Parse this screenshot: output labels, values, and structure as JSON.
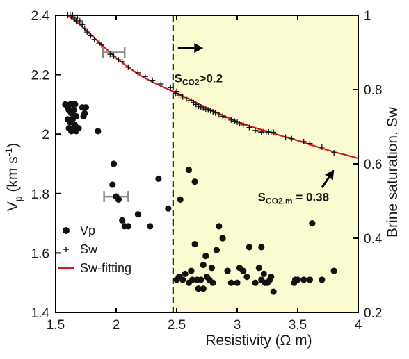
{
  "colors": {
    "shade": "#fbfbd2",
    "fit_line": "#e0141a",
    "marker": "#111111",
    "error_bar": "#8c8c8c"
  },
  "chart_data": {
    "type": "scatter",
    "xlabel": "Resistivity (Ω m)",
    "ylabel_left": {
      "main": "V",
      "sub": "p",
      "rest": " (km s",
      "sup": "-1",
      "end": ")"
    },
    "ylabel_right": "Brine saturation, Sw",
    "xlim": [
      1.5,
      4.0
    ],
    "ylim_left": [
      1.4,
      2.4
    ],
    "ylim_right": [
      0.2,
      1.0
    ],
    "x_ticks": [
      "1.5",
      "2",
      "2.5",
      "3",
      "3.5",
      "4"
    ],
    "y_ticks_left": [
      "1.4",
      "1.6",
      "1.8",
      "2",
      "2.2",
      "2.4"
    ],
    "y_ticks_right": [
      "0.2",
      "0.4",
      "0.6",
      "0.8",
      "1"
    ],
    "threshold_x": 2.47,
    "legend": {
      "placement": "bottom-left",
      "entries": [
        {
          "name": "Vp",
          "symbol": "circle"
        },
        {
          "name": "Sw",
          "symbol": "plus"
        },
        {
          "name": "Sw-fitting",
          "symbol": "line"
        }
      ]
    },
    "annotations": [
      {
        "main": "S",
        "sub": "CO2",
        "rest": ">0.2",
        "x": 2.48,
        "y": 2.175
      },
      {
        "main": "S",
        "sub": "CO2,m",
        "rest": " = 0.38",
        "x": 3.17,
        "y": 1.775
      }
    ],
    "arrows": [
      {
        "from": [
          2.51,
          2.29
        ],
        "to": [
          2.72,
          2.29
        ]
      },
      {
        "from": [
          3.7,
          1.82
        ],
        "to": [
          3.8,
          1.88
        ]
      }
    ],
    "series": [
      {
        "name": "Vp",
        "axis": "left",
        "marker": "circle",
        "points": [
          [
            1.58,
            2.1
          ],
          [
            1.6,
            2.09
          ],
          [
            1.62,
            2.1
          ],
          [
            1.64,
            2.1
          ],
          [
            1.66,
            2.1
          ],
          [
            1.61,
            2.08
          ],
          [
            1.63,
            2.07
          ],
          [
            1.65,
            2.08
          ],
          [
            1.67,
            2.06
          ],
          [
            1.6,
            2.05
          ],
          [
            1.62,
            2.04
          ],
          [
            1.64,
            2.05
          ],
          [
            1.66,
            2.03
          ],
          [
            1.61,
            2.02
          ],
          [
            1.63,
            2.01
          ],
          [
            1.65,
            2.02
          ],
          [
            1.67,
            2.01
          ],
          [
            1.69,
            2.02
          ],
          [
            1.72,
            2.09
          ],
          [
            1.74,
            2.07
          ],
          [
            1.75,
            2.09
          ],
          [
            1.73,
            2.06
          ],
          [
            1.85,
            2.01
          ],
          [
            1.98,
            1.9
          ],
          [
            1.97,
            1.83
          ],
          [
            2.0,
            1.79
          ],
          [
            2.02,
            1.78
          ],
          [
            2.05,
            1.71
          ],
          [
            2.07,
            1.69
          ],
          [
            2.1,
            1.69
          ],
          [
            2.18,
            1.73
          ],
          [
            2.28,
            1.69
          ],
          [
            2.35,
            1.85
          ],
          [
            2.43,
            1.75
          ],
          [
            2.53,
            1.78
          ],
          [
            2.6,
            1.88
          ],
          [
            2.65,
            1.84
          ],
          [
            2.63,
            1.51
          ],
          [
            2.65,
            1.63
          ],
          [
            2.72,
            1.56
          ],
          [
            2.74,
            1.59
          ],
          [
            2.79,
            1.55
          ],
          [
            2.83,
            1.61
          ],
          [
            2.85,
            1.69
          ],
          [
            2.88,
            1.65
          ],
          [
            2.92,
            1.54
          ],
          [
            3.0,
            1.5
          ],
          [
            3.02,
            1.55
          ],
          [
            3.05,
            1.54
          ],
          [
            3.1,
            1.62
          ],
          [
            3.2,
            1.62
          ],
          [
            3.18,
            1.55
          ],
          [
            3.22,
            1.53
          ],
          [
            3.25,
            1.5
          ],
          [
            3.28,
            1.52
          ],
          [
            3.3,
            1.47
          ],
          [
            3.48,
            1.51
          ],
          [
            3.5,
            1.51
          ],
          [
            3.62,
            1.7
          ],
          [
            3.6,
            1.51
          ],
          [
            3.7,
            1.51
          ],
          [
            3.8,
            1.54
          ],
          [
            2.5,
            1.51
          ],
          [
            2.52,
            1.52
          ],
          [
            2.55,
            1.51
          ],
          [
            2.57,
            1.53
          ],
          [
            2.6,
            1.5
          ],
          [
            2.62,
            1.54
          ],
          [
            2.67,
            1.51
          ],
          [
            2.68,
            1.48
          ],
          [
            2.7,
            1.51
          ],
          [
            2.72,
            1.48
          ],
          [
            2.75,
            1.52
          ],
          [
            2.77,
            1.51
          ],
          [
            2.8,
            1.5
          ],
          [
            2.95,
            1.5
          ],
          [
            3.08,
            1.52
          ],
          [
            3.15,
            1.5
          ],
          [
            3.2,
            1.51
          ],
          [
            3.23,
            1.5
          ],
          [
            3.27,
            1.51
          ],
          [
            3.47,
            1.5
          ],
          [
            3.55,
            1.51
          ]
        ],
        "error_bars": [
          {
            "x": 2.0,
            "y": 1.79,
            "xerr": 0.1
          }
        ]
      },
      {
        "name": "Sw",
        "axis": "right",
        "marker": "plus",
        "points": [
          [
            1.6,
            1.0
          ],
          [
            1.62,
            1.0
          ],
          [
            1.63,
            0.995
          ],
          [
            1.64,
            1.0
          ],
          [
            1.65,
            0.995
          ],
          [
            1.66,
            0.99
          ],
          [
            1.67,
            0.985
          ],
          [
            1.68,
            0.995
          ],
          [
            1.7,
            0.985
          ],
          [
            1.72,
            0.975
          ],
          [
            1.74,
            0.965
          ],
          [
            1.76,
            0.955
          ],
          [
            1.79,
            0.945
          ],
          [
            1.82,
            0.935
          ],
          [
            1.86,
            0.925
          ],
          [
            1.88,
            0.92
          ],
          [
            1.95,
            0.895
          ],
          [
            1.98,
            0.89
          ],
          [
            2.02,
            0.88
          ],
          [
            2.05,
            0.875
          ],
          [
            2.1,
            0.86
          ],
          [
            2.18,
            0.845
          ],
          [
            2.24,
            0.835
          ],
          [
            2.3,
            0.825
          ],
          [
            2.37,
            0.815
          ],
          [
            2.45,
            0.805
          ],
          [
            2.49,
            0.79
          ],
          [
            2.5,
            0.795
          ],
          [
            2.52,
            0.785
          ],
          [
            2.55,
            0.78
          ],
          [
            2.58,
            0.775
          ],
          [
            2.6,
            0.77
          ],
          [
            2.62,
            0.77
          ],
          [
            2.64,
            0.765
          ],
          [
            2.66,
            0.76
          ],
          [
            2.68,
            0.755
          ],
          [
            2.7,
            0.753
          ],
          [
            2.72,
            0.75
          ],
          [
            2.74,
            0.747
          ],
          [
            2.76,
            0.745
          ],
          [
            2.78,
            0.743
          ],
          [
            2.8,
            0.74
          ],
          [
            2.82,
            0.737
          ],
          [
            2.85,
            0.732
          ],
          [
            2.88,
            0.728
          ],
          [
            2.9,
            0.725
          ],
          [
            2.95,
            0.718
          ],
          [
            2.98,
            0.715
          ],
          [
            3.0,
            0.712
          ],
          [
            3.02,
            0.708
          ],
          [
            3.05,
            0.705
          ],
          [
            3.1,
            0.698
          ],
          [
            3.15,
            0.69
          ],
          [
            3.18,
            0.688
          ],
          [
            3.2,
            0.685
          ],
          [
            3.22,
            0.688
          ],
          [
            3.24,
            0.684
          ],
          [
            3.26,
            0.686
          ],
          [
            3.28,
            0.684
          ],
          [
            3.3,
            0.685
          ],
          [
            3.4,
            0.672
          ],
          [
            3.45,
            0.668
          ],
          [
            3.55,
            0.66
          ],
          [
            3.6,
            0.655
          ],
          [
            3.7,
            0.645
          ],
          [
            3.8,
            0.63
          ]
        ],
        "error_bars": [
          {
            "x": 1.98,
            "y": 0.9,
            "xerr": 0.09
          }
        ]
      },
      {
        "name": "Sw-fitting",
        "axis": "right",
        "line": true,
        "points": [
          [
            1.6,
            1.0
          ],
          [
            1.7,
            0.975
          ],
          [
            1.8,
            0.945
          ],
          [
            1.9,
            0.915
          ],
          [
            2.0,
            0.885
          ],
          [
            2.1,
            0.86
          ],
          [
            2.2,
            0.838
          ],
          [
            2.3,
            0.82
          ],
          [
            2.4,
            0.805
          ],
          [
            2.5,
            0.79
          ],
          [
            2.6,
            0.775
          ],
          [
            2.7,
            0.758
          ],
          [
            2.8,
            0.743
          ],
          [
            2.9,
            0.728
          ],
          [
            3.0,
            0.714
          ],
          [
            3.1,
            0.702
          ],
          [
            3.2,
            0.692
          ],
          [
            3.3,
            0.682
          ],
          [
            3.4,
            0.672
          ],
          [
            3.5,
            0.663
          ],
          [
            3.6,
            0.652
          ],
          [
            3.7,
            0.642
          ],
          [
            3.8,
            0.632
          ],
          [
            3.9,
            0.624
          ],
          [
            4.0,
            0.615
          ]
        ]
      }
    ]
  }
}
